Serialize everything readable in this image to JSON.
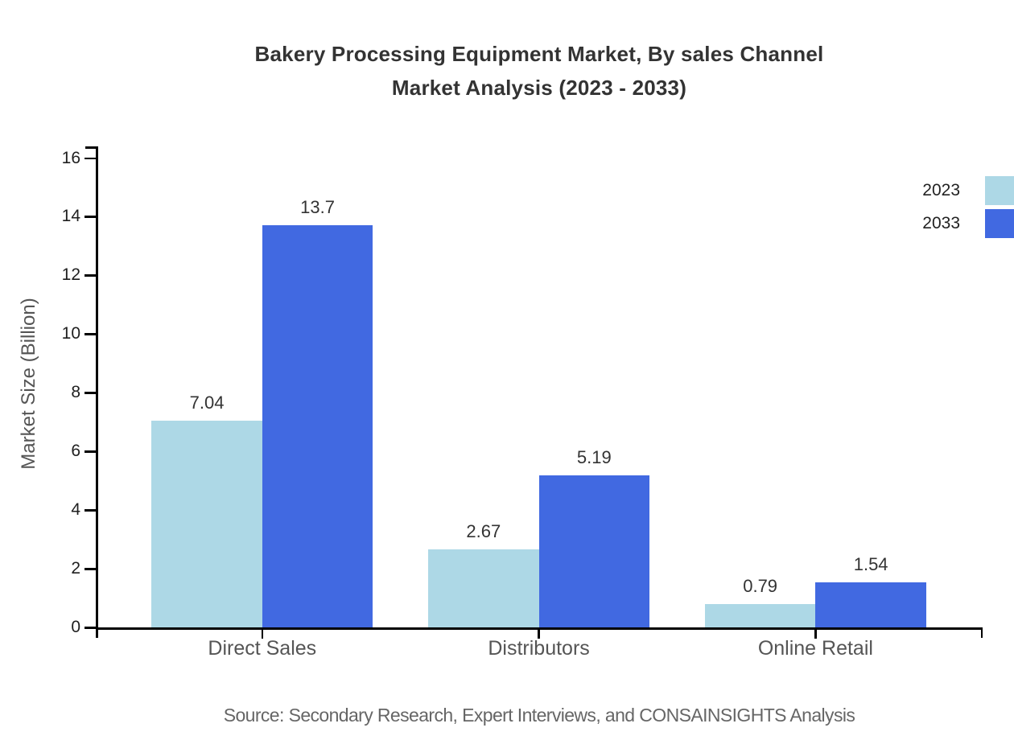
{
  "title": {
    "line1": "Bakery Processing Equipment Market, By sales Channel",
    "line2": "Market Analysis (2023 - 2033)"
  },
  "footer": {
    "source": "Source: Secondary Research, Expert Interviews, and CONSAINSIGHTS Analysis"
  },
  "chart_data": {
    "type": "bar",
    "title": "Bakery Processing Equipment Market, By sales Channel Market Analysis (2023 - 2033)",
    "categories": [
      "Direct Sales",
      "Distributors",
      "Online Retail"
    ],
    "series": [
      {
        "name": "2023",
        "color": "#ADD8E6",
        "values": [
          7.04,
          2.67,
          0.79
        ],
        "labels": [
          "7.04",
          "2.67",
          "0.79"
        ]
      },
      {
        "name": "2033",
        "color": "#4169E1",
        "values": [
          13.7,
          5.19,
          1.54
        ],
        "labels": [
          "13.7",
          "5.19",
          "1.54"
        ]
      }
    ],
    "xlabel": "",
    "ylabel": "Market Size (Billion)",
    "ylim": [
      0,
      16
    ],
    "ytick_step": 2,
    "grid": false,
    "legend_position": "top-right",
    "bar_value_labels_shown": true
  },
  "colors": {
    "series_2023": "#ADD8E6",
    "series_2033": "#4169E1",
    "axis": "#000000",
    "title_text": "#333333",
    "tick_text": "#1f1f1f",
    "category_text": "#555555",
    "value_text": "#333333",
    "source_text": "#666666"
  }
}
